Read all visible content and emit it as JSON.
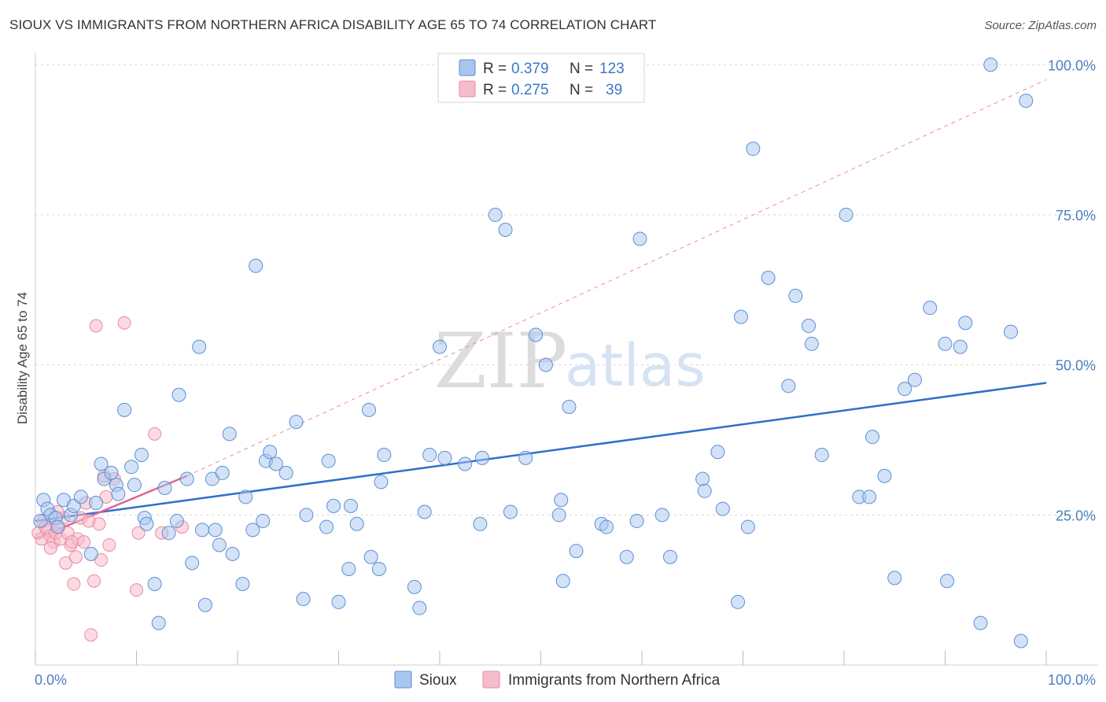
{
  "title": "SIOUX VS IMMIGRANTS FROM NORTHERN AFRICA DISABILITY AGE 65 TO 74 CORRELATION CHART",
  "source": "Source: ZipAtlas.com",
  "watermark": {
    "zip": "ZIP",
    "atlas": "atlas"
  },
  "colors": {
    "sioux_fill": "#a8c6ee",
    "sioux_stroke": "#5b8fd6",
    "sioux_line": "#2f6fc9",
    "africa_fill": "#f7bccb",
    "africa_stroke": "#e98aa5",
    "africa_line": "#e0658c",
    "grid": "#d8d8d8",
    "tick_text": "#4a7fc1"
  },
  "legend": {
    "rows": [
      {
        "r_label": "R =",
        "r_value": "0.379",
        "n_label": "N =",
        "n_value": "123"
      },
      {
        "r_label": "R =",
        "r_value": "0.275",
        "n_label": "N =",
        "n_value": "39"
      }
    ]
  },
  "bottom_legend": {
    "sioux": "Sioux",
    "africa": "Immigrants from Northern Africa"
  },
  "chart_data": {
    "type": "scatter",
    "title": "SIOUX VS IMMIGRANTS FROM NORTHERN AFRICA DISABILITY AGE 65 TO 74 CORRELATION CHART",
    "xlabel": "",
    "ylabel": "Disability Age 65 to 74",
    "xlim": [
      0,
      100
    ],
    "ylim": [
      0,
      102
    ],
    "x_tick_labels": [
      "0.0%",
      "100.0%"
    ],
    "y_tick_labels": [
      "25.0%",
      "50.0%",
      "75.0%",
      "100.0%"
    ],
    "y_ticks": [
      25,
      50,
      75,
      100
    ],
    "series": [
      {
        "name": "Sioux",
        "R": 0.379,
        "N": 123,
        "trend": {
          "x": [
            0,
            100
          ],
          "y": [
            24.0,
            47.0
          ],
          "style": "solid"
        },
        "points": [
          [
            0.8,
            27.5
          ],
          [
            1.2,
            26
          ],
          [
            1.5,
            25
          ],
          [
            2.0,
            24.5
          ],
          [
            2.2,
            23
          ],
          [
            2.8,
            27.5
          ],
          [
            3.5,
            25
          ],
          [
            3.8,
            26.5
          ],
          [
            4.5,
            28
          ],
          [
            5.5,
            18.5
          ],
          [
            6.0,
            27
          ],
          [
            6.5,
            33.5
          ],
          [
            6.8,
            31
          ],
          [
            7.5,
            32
          ],
          [
            8.0,
            30
          ],
          [
            8.2,
            28.5
          ],
          [
            8.8,
            42.5
          ],
          [
            9.5,
            33
          ],
          [
            9.8,
            30
          ],
          [
            10.5,
            35
          ],
          [
            10.8,
            24.5
          ],
          [
            11.0,
            23.5
          ],
          [
            11.8,
            13.5
          ],
          [
            12.2,
            7
          ],
          [
            12.8,
            29.5
          ],
          [
            13.2,
            22
          ],
          [
            14.0,
            24
          ],
          [
            14.2,
            45
          ],
          [
            15.0,
            31
          ],
          [
            15.5,
            17
          ],
          [
            16.2,
            53
          ],
          [
            16.5,
            22.5
          ],
          [
            16.8,
            10
          ],
          [
            17.5,
            31
          ],
          [
            17.8,
            22.5
          ],
          [
            18.2,
            20
          ],
          [
            18.5,
            32
          ],
          [
            19.2,
            38.5
          ],
          [
            19.5,
            18.5
          ],
          [
            20.5,
            13.5
          ],
          [
            20.8,
            28
          ],
          [
            21.5,
            22.5
          ],
          [
            21.8,
            66.5
          ],
          [
            22.5,
            24
          ],
          [
            22.8,
            34
          ],
          [
            23.2,
            35.5
          ],
          [
            23.8,
            33.5
          ],
          [
            24.8,
            32
          ],
          [
            25.8,
            40.5
          ],
          [
            26.5,
            11
          ],
          [
            26.8,
            25
          ],
          [
            28.8,
            23
          ],
          [
            29.0,
            34
          ],
          [
            29.5,
            26.5
          ],
          [
            30.0,
            10.5
          ],
          [
            31.0,
            16
          ],
          [
            31.2,
            26.5
          ],
          [
            31.8,
            23.5
          ],
          [
            33.0,
            42.5
          ],
          [
            33.2,
            18
          ],
          [
            34.0,
            16
          ],
          [
            34.2,
            30.5
          ],
          [
            34.5,
            35
          ],
          [
            37.5,
            13
          ],
          [
            38.0,
            9.5
          ],
          [
            38.5,
            25.5
          ],
          [
            39.0,
            35
          ],
          [
            40.0,
            53
          ],
          [
            40.5,
            34.5
          ],
          [
            42.5,
            33.5
          ],
          [
            44.0,
            23.5
          ],
          [
            44.2,
            34.5
          ],
          [
            45.5,
            75
          ],
          [
            46.5,
            72.5
          ],
          [
            47.0,
            25.5
          ],
          [
            48.5,
            34.5
          ],
          [
            49.5,
            55
          ],
          [
            50.5,
            50
          ],
          [
            51.8,
            25
          ],
          [
            52.0,
            27.5
          ],
          [
            52.2,
            14
          ],
          [
            52.8,
            43
          ],
          [
            53.5,
            19
          ],
          [
            56.0,
            23.5
          ],
          [
            56.5,
            23
          ],
          [
            58.5,
            18
          ],
          [
            59.5,
            24
          ],
          [
            59.8,
            71
          ],
          [
            62.0,
            25
          ],
          [
            62.8,
            18
          ],
          [
            66.0,
            31
          ],
          [
            66.2,
            29
          ],
          [
            67.5,
            35.5
          ],
          [
            68.0,
            26
          ],
          [
            69.5,
            10.5
          ],
          [
            69.8,
            58
          ],
          [
            70.5,
            23
          ],
          [
            71.0,
            86
          ],
          [
            72.5,
            64.5
          ],
          [
            74.5,
            46.5
          ],
          [
            75.2,
            61.5
          ],
          [
            76.5,
            56.5
          ],
          [
            76.8,
            53.5
          ],
          [
            77.8,
            35
          ],
          [
            80.2,
            75
          ],
          [
            81.5,
            28
          ],
          [
            82.5,
            28
          ],
          [
            82.8,
            38
          ],
          [
            84.0,
            31.5
          ],
          [
            85.0,
            14.5
          ],
          [
            86.0,
            46
          ],
          [
            87.0,
            47.5
          ],
          [
            88.5,
            59.5
          ],
          [
            90.0,
            53.5
          ],
          [
            90.2,
            14
          ],
          [
            91.5,
            53
          ],
          [
            92.0,
            57
          ],
          [
            93.5,
            7
          ],
          [
            94.5,
            100
          ],
          [
            96.5,
            55.5
          ],
          [
            97.5,
            4
          ],
          [
            98.0,
            94
          ],
          [
            0.5,
            24
          ]
        ]
      },
      {
        "name": "Immigrants from Northern Africa",
        "R": 0.275,
        "N": 39,
        "trend": {
          "x": [
            0,
            15
          ],
          "y": [
            21.0,
            31.5
          ],
          "style": "solid",
          "extended_x": [
            15,
            100
          ],
          "extended_y": [
            31.5,
            97.5
          ],
          "extended_style": "dashed"
        },
        "points": [
          [
            0.3,
            22
          ],
          [
            0.6,
            21
          ],
          [
            0.8,
            24
          ],
          [
            1.0,
            23
          ],
          [
            1.2,
            22.5
          ],
          [
            1.5,
            21.5
          ],
          [
            1.8,
            20.5
          ],
          [
            2.0,
            22
          ],
          [
            2.3,
            23
          ],
          [
            2.5,
            21
          ],
          [
            2.8,
            24.5
          ],
          [
            3.0,
            17
          ],
          [
            3.2,
            22
          ],
          [
            3.5,
            20
          ],
          [
            3.8,
            13.5
          ],
          [
            4.0,
            18
          ],
          [
            4.2,
            21
          ],
          [
            4.5,
            24.5
          ],
          [
            4.8,
            20.5
          ],
          [
            5.0,
            27
          ],
          [
            5.3,
            24
          ],
          [
            5.5,
            5
          ],
          [
            5.8,
            14
          ],
          [
            6.0,
            56.5
          ],
          [
            6.3,
            23.5
          ],
          [
            6.5,
            17.5
          ],
          [
            6.8,
            31.5
          ],
          [
            7.0,
            28
          ],
          [
            7.3,
            20
          ],
          [
            7.8,
            31
          ],
          [
            8.8,
            57
          ],
          [
            10.0,
            12.5
          ],
          [
            10.2,
            22
          ],
          [
            11.8,
            38.5
          ],
          [
            12.5,
            22
          ],
          [
            14.5,
            23
          ],
          [
            1.5,
            19.5
          ],
          [
            3.6,
            20.5
          ],
          [
            2.2,
            25.5
          ]
        ]
      }
    ]
  }
}
